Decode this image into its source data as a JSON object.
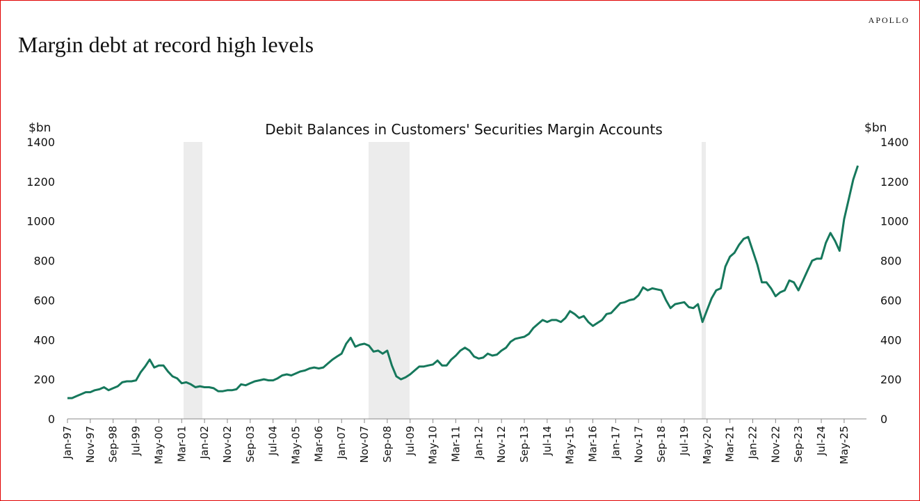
{
  "chart_data": {
    "type": "line",
    "brand": "APOLLO",
    "title": "Margin debt at record high levels",
    "subtitle": "Debit Balances in Customers' Securities Margin Accounts",
    "y_label": "$bn",
    "y2_label": "$bn",
    "categories": [
      "Jan-97",
      null,
      null,
      null,
      null,
      "Nov-97",
      null,
      null,
      null,
      null,
      "Sep-98",
      null,
      null,
      null,
      null,
      "Jul-99",
      null,
      null,
      null,
      null,
      "May-00",
      null,
      null,
      null,
      null,
      "Mar-01",
      null,
      null,
      null,
      null,
      "Jan-02",
      null,
      null,
      null,
      null,
      "Nov-02",
      null,
      null,
      null,
      null,
      "Sep-03",
      null,
      null,
      null,
      null,
      "Jul-04",
      null,
      null,
      null,
      null,
      "May-05",
      null,
      null,
      null,
      null,
      "Mar-06",
      null,
      null,
      null,
      null,
      "Jan-07",
      null,
      null,
      null,
      null,
      "Nov-07",
      null,
      null,
      null,
      null,
      "Sep-08",
      null,
      null,
      null,
      null,
      "Jul-09",
      null,
      null,
      null,
      null,
      "May-10",
      null,
      null,
      null,
      null,
      "Mar-11",
      null,
      null,
      null,
      null,
      "Jan-12",
      null,
      null,
      null,
      null,
      "Nov-12",
      null,
      null,
      null,
      null,
      "Sep-13",
      null,
      null,
      null,
      null,
      "Jul-14",
      null,
      null,
      null,
      null,
      "May-15",
      null,
      null,
      null,
      null,
      "Mar-16",
      null,
      null,
      null,
      null,
      "Jan-17",
      null,
      null,
      null,
      null,
      "Nov-17",
      null,
      null,
      null,
      null,
      "Sep-18",
      null,
      null,
      null,
      null,
      "Jul-19",
      null,
      null,
      null,
      null,
      "May-20",
      null,
      null,
      null,
      null,
      "Mar-21",
      null,
      null,
      null,
      null,
      "Jan-22",
      null,
      null,
      null,
      null,
      "Nov-22",
      null,
      null,
      null,
      null,
      "Sep-23",
      null,
      null,
      null,
      null,
      "Jul-24",
      null,
      null,
      null,
      null,
      "May-25",
      null,
      null,
      null
    ],
    "series": [
      {
        "name": "Margin debt",
        "color": "#16785c",
        "values": [
          105,
          105,
          115,
          125,
          135,
          135,
          145,
          150,
          160,
          145,
          155,
          165,
          185,
          190,
          190,
          195,
          235,
          265,
          300,
          260,
          270,
          270,
          240,
          215,
          205,
          180,
          185,
          175,
          160,
          165,
          160,
          160,
          155,
          140,
          140,
          145,
          145,
          150,
          175,
          170,
          180,
          190,
          195,
          200,
          195,
          195,
          205,
          220,
          225,
          220,
          230,
          240,
          245,
          255,
          260,
          255,
          260,
          280,
          300,
          315,
          330,
          380,
          410,
          365,
          375,
          380,
          370,
          340,
          345,
          330,
          345,
          270,
          215,
          200,
          210,
          225,
          245,
          265,
          265,
          270,
          275,
          295,
          270,
          270,
          300,
          320,
          345,
          360,
          345,
          315,
          305,
          310,
          330,
          320,
          325,
          345,
          360,
          390,
          405,
          410,
          415,
          430,
          460,
          480,
          500,
          490,
          500,
          500,
          490,
          510,
          545,
          530,
          510,
          520,
          490,
          470,
          485,
          500,
          530,
          535,
          560,
          585,
          590,
          600,
          605,
          625,
          665,
          650,
          660,
          655,
          650,
          600,
          560,
          580,
          585,
          590,
          565,
          560,
          580,
          490,
          550,
          610,
          650,
          660,
          770,
          820,
          840,
          880,
          910,
          920,
          850,
          780,
          690,
          690,
          660,
          620,
          640,
          650,
          700,
          690,
          650,
          700,
          750,
          800,
          810,
          810,
          890,
          940,
          900,
          850,
          1010,
          1110,
          1210,
          1280
        ]
      }
    ],
    "ylim": [
      0,
      1400
    ],
    "yticks": [
      0,
      200,
      400,
      600,
      800,
      1000,
      1200,
      1400
    ],
    "y2lim": [
      0,
      1400
    ],
    "y2ticks": [
      0,
      200,
      400,
      600,
      800,
      1000,
      1200,
      1400
    ]
  }
}
